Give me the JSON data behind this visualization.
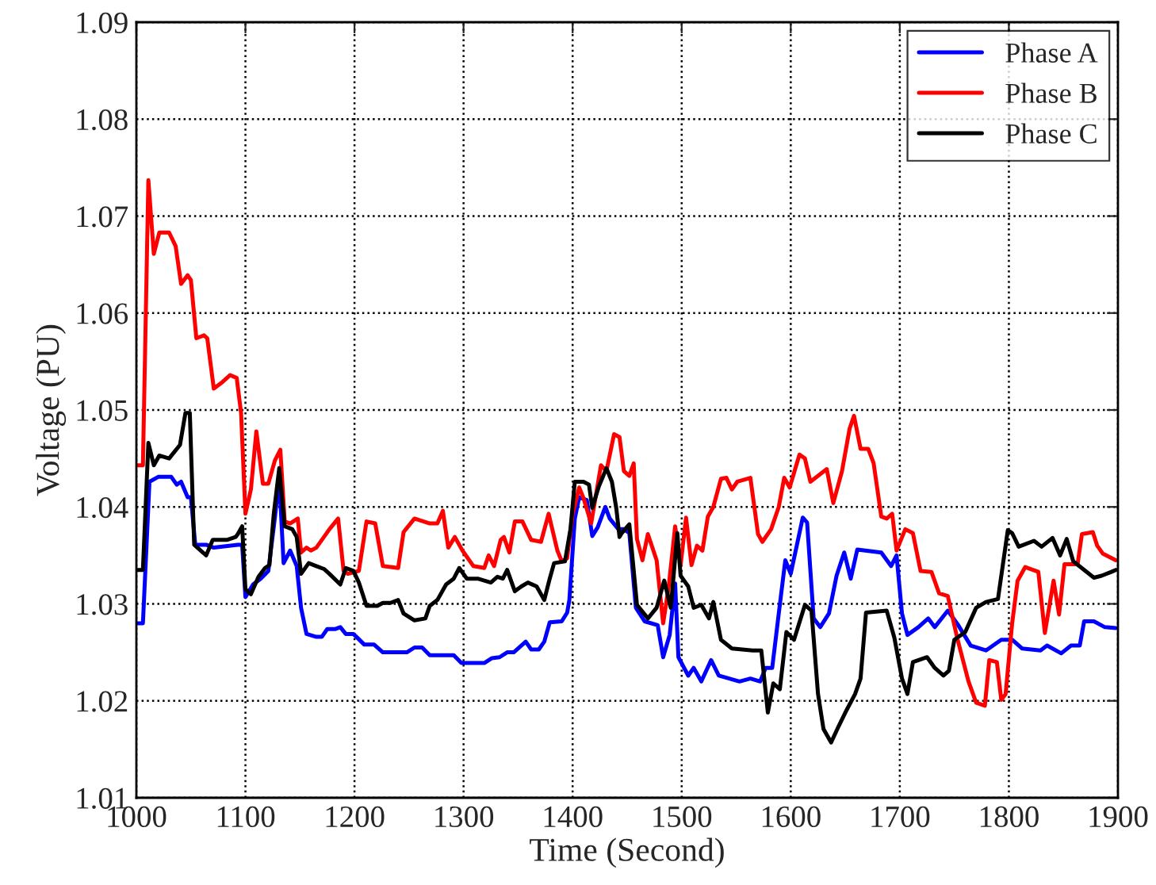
{
  "chart_data": {
    "type": "line",
    "xlabel": "Time (Second)",
    "ylabel": "Voltage (PU)",
    "xlim": [
      1000,
      1900
    ],
    "xticks": [
      1000,
      1100,
      1200,
      1300,
      1400,
      1500,
      1600,
      1700,
      1800,
      1900
    ],
    "ylim": [
      1.01,
      1.09
    ],
    "yticks": [
      1.01,
      1.02,
      1.03,
      1.04,
      1.05,
      1.06,
      1.07,
      1.08,
      1.09
    ],
    "grid": true,
    "legend": "top right",
    "line_style": "solid",
    "marker": "none",
    "series": [
      {
        "name": "Phase A",
        "color": "#0000ff",
        "x": [
          1000,
          1006,
          1012,
          1020,
          1032,
          1037,
          1041,
          1047,
          1050,
          1054,
          1064,
          1071,
          1093,
          1097,
          1100,
          1107,
          1114,
          1121,
          1127,
          1131,
          1135,
          1141,
          1147,
          1151,
          1156,
          1165,
          1170,
          1175,
          1182,
          1187,
          1192,
          1199,
          1209,
          1218,
          1226,
          1248,
          1255,
          1262,
          1269,
          1291,
          1298,
          1319,
          1326,
          1333,
          1340,
          1346,
          1357,
          1362,
          1369,
          1374,
          1379,
          1390,
          1395,
          1397,
          1402,
          1406,
          1413,
          1418,
          1423,
          1430,
          1434,
          1442,
          1447,
          1452,
          1458,
          1466,
          1478,
          1483,
          1489,
          1494,
          1497,
          1506,
          1511,
          1518,
          1527,
          1534,
          1553,
          1563,
          1572,
          1577,
          1583,
          1589,
          1595,
          1600,
          1611,
          1615,
          1621,
          1627,
          1635,
          1642,
          1649,
          1655,
          1661,
          1683,
          1692,
          1697,
          1702,
          1707,
          1717,
          1726,
          1732,
          1744,
          1753,
          1765,
          1779,
          1793,
          1803,
          1812,
          1829,
          1835,
          1848,
          1857,
          1865,
          1869,
          1878,
          1888,
          1898
        ],
        "values": [
          1.028,
          1.028,
          1.0426,
          1.0431,
          1.0431,
          1.0423,
          1.0426,
          1.041,
          1.041,
          1.0361,
          1.0361,
          1.0358,
          1.0361,
          1.0361,
          1.0307,
          1.032,
          1.0326,
          1.0334,
          1.0389,
          1.0429,
          1.0342,
          1.0355,
          1.0339,
          1.0296,
          1.0269,
          1.0266,
          1.0266,
          1.0274,
          1.0274,
          1.0276,
          1.0269,
          1.0269,
          1.0258,
          1.0258,
          1.025,
          1.025,
          1.0255,
          1.0255,
          1.0247,
          1.0247,
          1.0239,
          1.0239,
          1.0244,
          1.0245,
          1.025,
          1.025,
          1.0261,
          1.0253,
          1.0253,
          1.0261,
          1.0281,
          1.0282,
          1.0291,
          1.0304,
          1.0388,
          1.041,
          1.0407,
          1.037,
          1.0379,
          1.04,
          1.0388,
          1.0377,
          1.0377,
          1.0373,
          1.0296,
          1.0282,
          1.0278,
          1.0245,
          1.0268,
          1.0321,
          1.0245,
          1.0226,
          1.0234,
          1.022,
          1.0242,
          1.0226,
          1.022,
          1.0223,
          1.022,
          1.0234,
          1.0234,
          1.029,
          1.0345,
          1.0331,
          1.0389,
          1.0384,
          1.0285,
          1.0276,
          1.029,
          1.0329,
          1.0353,
          1.0326,
          1.0356,
          1.0353,
          1.0339,
          1.035,
          1.029,
          1.0268,
          1.0276,
          1.0285,
          1.0276,
          1.0293,
          1.0279,
          1.0257,
          1.0252,
          1.0263,
          1.0263,
          1.0254,
          1.0252,
          1.0257,
          1.0249,
          1.0257,
          1.0257,
          1.0282,
          1.0282,
          1.0276,
          1.0275
        ]
      },
      {
        "name": "Phase B",
        "color": "#ff0000",
        "x": [
          1000,
          1006,
          1011,
          1016,
          1021,
          1030,
          1036,
          1041,
          1047,
          1050,
          1055,
          1062,
          1065,
          1071,
          1078,
          1086,
          1092,
          1096,
          1100,
          1105,
          1110,
          1116,
          1121,
          1127,
          1132,
          1136,
          1141,
          1148,
          1151,
          1156,
          1160,
          1165,
          1172,
          1177,
          1185,
          1190,
          1194,
          1204,
          1211,
          1219,
          1226,
          1240,
          1245,
          1255,
          1269,
          1276,
          1281,
          1286,
          1292,
          1299,
          1309,
          1319,
          1323,
          1328,
          1334,
          1337,
          1342,
          1347,
          1354,
          1362,
          1371,
          1378,
          1386,
          1390,
          1395,
          1400,
          1406,
          1410,
          1417,
          1426,
          1431,
          1438,
          1443,
          1447,
          1452,
          1456,
          1459,
          1464,
          1469,
          1477,
          1483,
          1488,
          1494,
          1499,
          1504,
          1509,
          1514,
          1519,
          1524,
          1529,
          1536,
          1541,
          1546,
          1551,
          1563,
          1570,
          1574,
          1582,
          1589,
          1594,
          1599,
          1608,
          1613,
          1618,
          1633,
          1639,
          1647,
          1654,
          1658,
          1664,
          1671,
          1676,
          1683,
          1688,
          1693,
          1697,
          1705,
          1712,
          1719,
          1729,
          1736,
          1744,
          1753,
          1763,
          1770,
          1778,
          1782,
          1789,
          1793,
          1797,
          1803,
          1808,
          1815,
          1827,
          1833,
          1841,
          1846,
          1851,
          1863,
          1867,
          1877,
          1881,
          1886,
          1898
        ],
        "values": [
          1.0443,
          1.0443,
          1.0737,
          1.0661,
          1.0683,
          1.0683,
          1.0669,
          1.063,
          1.0639,
          1.0634,
          1.0574,
          1.0577,
          1.0574,
          1.0522,
          1.0528,
          1.0536,
          1.0533,
          1.0497,
          1.0393,
          1.0418,
          1.0478,
          1.0424,
          1.0424,
          1.0448,
          1.0459,
          1.0385,
          1.0383,
          1.0388,
          1.0353,
          1.0358,
          1.0355,
          1.0358,
          1.0369,
          1.0377,
          1.0388,
          1.0334,
          1.0331,
          1.0334,
          1.0385,
          1.0383,
          1.0339,
          1.0337,
          1.0374,
          1.0388,
          1.0383,
          1.0383,
          1.0396,
          1.0358,
          1.0369,
          1.0355,
          1.0339,
          1.0337,
          1.035,
          1.0339,
          1.0366,
          1.0369,
          1.0353,
          1.0385,
          1.0385,
          1.0366,
          1.0364,
          1.0393,
          1.0355,
          1.0344,
          1.0347,
          1.0393,
          1.042,
          1.0409,
          1.0383,
          1.0443,
          1.0437,
          1.0475,
          1.0472,
          1.0437,
          1.0432,
          1.0445,
          1.0367,
          1.0345,
          1.0372,
          1.0345,
          1.028,
          1.0317,
          1.038,
          1.034,
          1.0389,
          1.034,
          1.036,
          1.0355,
          1.039,
          1.04,
          1.0429,
          1.043,
          1.0418,
          1.0426,
          1.043,
          1.0372,
          1.0364,
          1.0377,
          1.04,
          1.043,
          1.042,
          1.0454,
          1.045,
          1.0426,
          1.0439,
          1.0404,
          1.0437,
          1.0481,
          1.0494,
          1.046,
          1.046,
          1.0445,
          1.039,
          1.0388,
          1.0393,
          1.0355,
          1.0377,
          1.0373,
          1.0334,
          1.0333,
          1.0311,
          1.0308,
          1.0263,
          1.022,
          1.0198,
          1.0195,
          1.0242,
          1.024,
          1.0201,
          1.0207,
          1.028,
          1.0324,
          1.0338,
          1.0333,
          1.027,
          1.0324,
          1.0289,
          1.0341,
          1.0341,
          1.0372,
          1.0374,
          1.036,
          1.0352,
          1.0345
        ]
      },
      {
        "name": "Phase C",
        "color": "#000000",
        "x": [
          1000,
          1006,
          1011,
          1016,
          1021,
          1030,
          1040,
          1045,
          1049,
          1053,
          1064,
          1070,
          1083,
          1091,
          1093,
          1097,
          1100,
          1105,
          1112,
          1118,
          1122,
          1126,
          1131,
          1136,
          1143,
          1147,
          1151,
          1158,
          1165,
          1172,
          1177,
          1187,
          1192,
          1199,
          1204,
          1211,
          1221,
          1226,
          1233,
          1240,
          1245,
          1255,
          1265,
          1269,
          1276,
          1284,
          1291,
          1296,
          1303,
          1313,
          1325,
          1331,
          1336,
          1340,
          1347,
          1353,
          1359,
          1367,
          1374,
          1379,
          1383,
          1393,
          1398,
          1402,
          1410,
          1415,
          1418,
          1424,
          1431,
          1436,
          1440,
          1443,
          1445,
          1452,
          1459,
          1469,
          1477,
          1484,
          1490,
          1496,
          1499,
          1506,
          1511,
          1518,
          1525,
          1529,
          1536,
          1546,
          1565,
          1573,
          1579,
          1584,
          1590,
          1596,
          1603,
          1613,
          1619,
          1625,
          1630,
          1637,
          1644,
          1651,
          1659,
          1664,
          1669,
          1688,
          1695,
          1702,
          1707,
          1712,
          1725,
          1732,
          1740,
          1745,
          1750,
          1760,
          1770,
          1779,
          1790,
          1799,
          1803,
          1809,
          1823,
          1830,
          1840,
          1847,
          1853,
          1859,
          1878,
          1885,
          1894,
          1898
        ],
        "values": [
          1.0335,
          1.0335,
          1.0466,
          1.0443,
          1.0453,
          1.045,
          1.0464,
          1.0497,
          1.0497,
          1.0361,
          1.035,
          1.0366,
          1.0366,
          1.0369,
          1.0372,
          1.038,
          1.0315,
          1.031,
          1.0328,
          1.0337,
          1.034,
          1.0393,
          1.044,
          1.038,
          1.0377,
          1.0369,
          1.0331,
          1.0342,
          1.0339,
          1.0336,
          1.0331,
          1.032,
          1.0337,
          1.0334,
          1.0322,
          1.0298,
          1.0298,
          1.0301,
          1.0301,
          1.0304,
          1.029,
          1.0283,
          1.0285,
          1.0298,
          1.0304,
          1.032,
          1.0326,
          1.0337,
          1.0326,
          1.0326,
          1.0322,
          1.0328,
          1.0326,
          1.0335,
          1.0313,
          1.0318,
          1.0322,
          1.0318,
          1.0304,
          1.0326,
          1.0342,
          1.0344,
          1.0377,
          1.0426,
          1.0426,
          1.0423,
          1.0399,
          1.0421,
          1.044,
          1.0426,
          1.0399,
          1.0369,
          1.0373,
          1.0382,
          1.0299,
          1.0285,
          1.0296,
          1.0324,
          1.0296,
          1.0373,
          1.0329,
          1.0318,
          1.0296,
          1.0299,
          1.0285,
          1.0302,
          1.0263,
          1.0254,
          1.0252,
          1.0252,
          1.0188,
          1.0218,
          1.0212,
          1.0271,
          1.0263,
          1.0299,
          1.0293,
          1.0207,
          1.0171,
          1.0157,
          1.0174,
          1.019,
          1.0207,
          1.0223,
          1.0291,
          1.0293,
          1.0265,
          1.0223,
          1.0207,
          1.024,
          1.0245,
          1.0234,
          1.0226,
          1.0231,
          1.0263,
          1.0271,
          1.0296,
          1.0302,
          1.0305,
          1.0376,
          1.0373,
          1.0359,
          1.0365,
          1.0359,
          1.0368,
          1.035,
          1.0367,
          1.0344,
          1.0327,
          1.0329,
          1.0333,
          1.0335
        ]
      }
    ]
  }
}
